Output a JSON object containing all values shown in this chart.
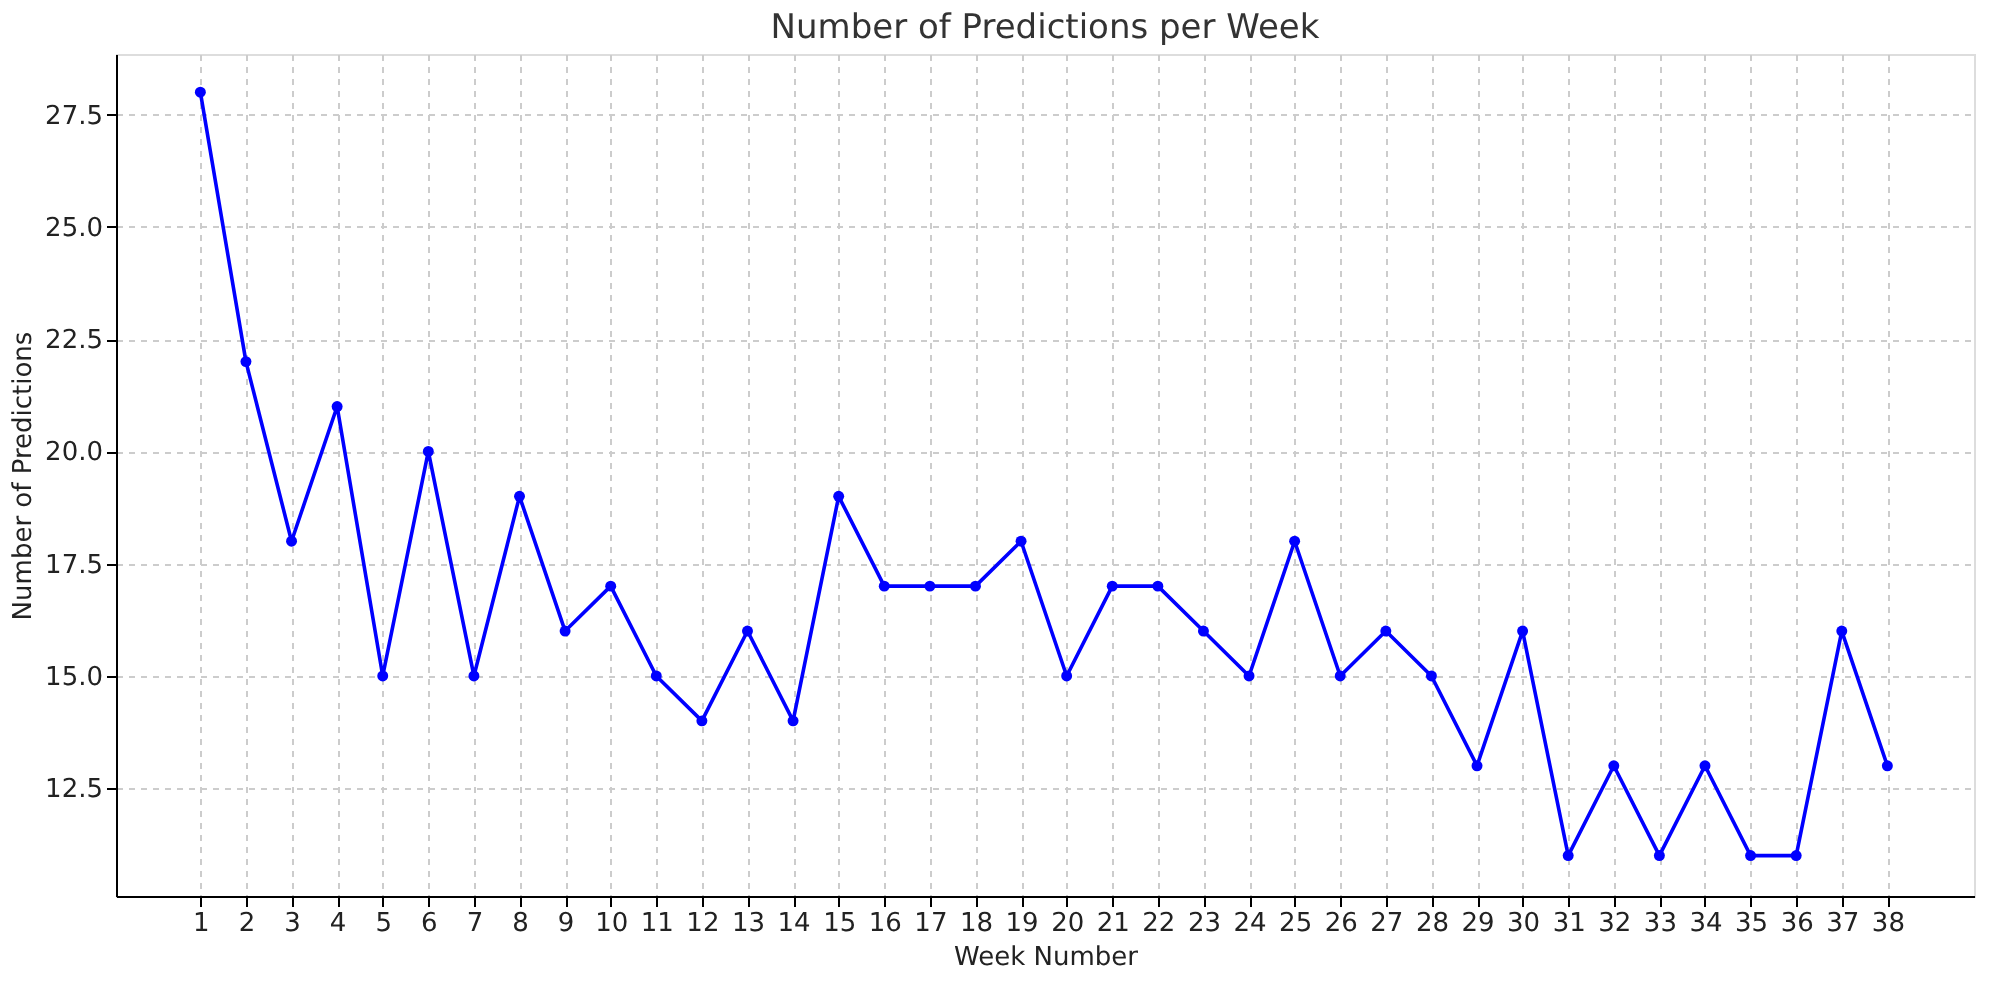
{
  "chart_data": {
    "type": "line",
    "title": "Number of Predictions per Week",
    "xlabel": "Week Number",
    "ylabel": "Number of Predictions",
    "x": [
      1,
      2,
      3,
      4,
      5,
      6,
      7,
      8,
      9,
      10,
      11,
      12,
      13,
      14,
      15,
      16,
      17,
      18,
      19,
      20,
      21,
      22,
      23,
      24,
      25,
      26,
      27,
      28,
      29,
      30,
      31,
      32,
      33,
      34,
      35,
      36,
      37,
      38
    ],
    "series": [
      {
        "color": "#0000ff",
        "values": [
          28,
          22,
          18,
          21,
          15,
          20,
          15,
          19,
          16,
          17,
          15,
          14,
          16,
          14,
          19,
          17,
          17,
          17,
          18,
          15,
          17,
          17,
          16,
          15,
          18,
          15,
          16,
          15,
          13,
          16,
          11,
          13,
          11,
          13,
          11,
          11,
          16,
          13
        ]
      }
    ],
    "xlim": [
      -0.85,
      39.9
    ],
    "xticks": [
      1,
      2,
      3,
      4,
      5,
      6,
      7,
      8,
      9,
      10,
      11,
      12,
      13,
      14,
      15,
      16,
      17,
      18,
      19,
      20,
      21,
      22,
      23,
      24,
      25,
      26,
      27,
      28,
      29,
      30,
      31,
      32,
      33,
      34,
      35,
      36,
      37,
      38
    ],
    "ylim": [
      10.1,
      28.85
    ],
    "yticks": [
      12.5,
      {
        "value": 15,
        "label": "15.0"
      },
      17.5,
      {
        "value": 20,
        "label": "20.0"
      },
      22.5,
      {
        "value": 25,
        "label": "25.0"
      },
      27.5
    ],
    "grid": true,
    "marker": "circle",
    "line_style": "solid"
  }
}
